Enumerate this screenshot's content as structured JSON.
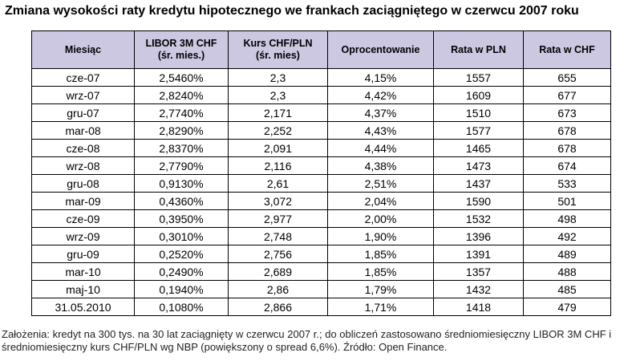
{
  "title": "Zmiana wysokości raty kredytu hipotecznego we frankach zaciągniętego w czerwcu 2007 roku",
  "footnote": "Założenia: kredyt na 300 tys. na 30 lat zaciągnięty w czerwcu 2007 r.; do obliczeń zastosowano średniomiesięczny LIBOR 3M CHF i średniomiesięczny kurs CHF/PLN wg NBP (powiększony o spread 6,6%). Źródło: Open Finance.",
  "colors": {
    "header_bg": "#ccc8e2",
    "border": "#000000"
  },
  "chart_data": {
    "type": "table",
    "title": "Zmiana wysokości raty kredytu hipotecznego we frankach zaciągniętego w czerwcu 2007 roku",
    "columns": [
      {
        "line1": "Miesiąc",
        "line2": ""
      },
      {
        "line1": "LIBOR 3M CHF",
        "line2": "(śr. mies.)"
      },
      {
        "line1": "Kurs CHF/PLN",
        "line2": "(śr. mies)"
      },
      {
        "line1": "Oprocentowanie",
        "line2": ""
      },
      {
        "line1": "Rata w PLN",
        "line2": ""
      },
      {
        "line1": "Rata w CHF",
        "line2": ""
      }
    ],
    "rows": [
      [
        "cze-07",
        "2,5460%",
        "2,3",
        "4,15%",
        "1557",
        "655"
      ],
      [
        "wrz-07",
        "2,8240%",
        "2,3",
        "4,42%",
        "1609",
        "677"
      ],
      [
        "gru-07",
        "2,7740%",
        "2,171",
        "4,37%",
        "1510",
        "673"
      ],
      [
        "mar-08",
        "2,8290%",
        "2,252",
        "4,43%",
        "1577",
        "678"
      ],
      [
        "cze-08",
        "2,8370%",
        "2,091",
        "4,44%",
        "1465",
        "678"
      ],
      [
        "wrz-08",
        "2,7790%",
        "2,116",
        "4,38%",
        "1473",
        "674"
      ],
      [
        "gru-08",
        "0,9130%",
        "2,61",
        "2,51%",
        "1437",
        "533"
      ],
      [
        "mar-09",
        "0,4360%",
        "3,072",
        "2,04%",
        "1590",
        "501"
      ],
      [
        "cze-09",
        "0,3950%",
        "2,977",
        "2,00%",
        "1532",
        "498"
      ],
      [
        "wrz-09",
        "0,3010%",
        "2,748",
        "1,90%",
        "1396",
        "492"
      ],
      [
        "gru-09",
        "0,2520%",
        "2,756",
        "1,85%",
        "1391",
        "489"
      ],
      [
        "mar-10",
        "0,2490%",
        "2,689",
        "1,85%",
        "1357",
        "488"
      ],
      [
        "maj-10",
        "0,1940%",
        "2,86",
        "1,79%",
        "1432",
        "485"
      ],
      [
        "31.05.2010",
        "0,1080%",
        "2,866",
        "1,71%",
        "1418",
        "479"
      ]
    ]
  }
}
